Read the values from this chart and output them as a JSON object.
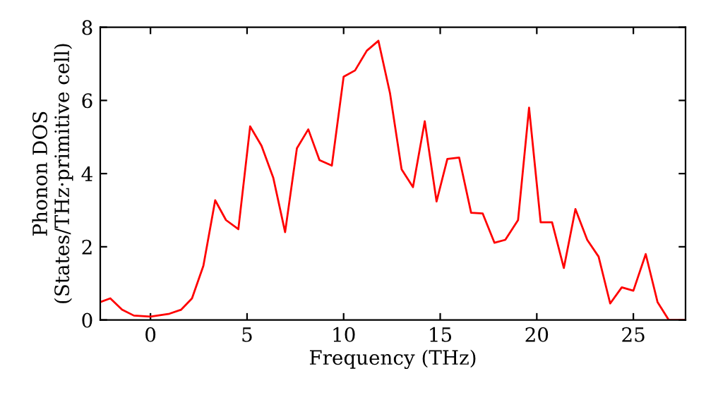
{
  "chart_data": {
    "type": "line",
    "xlabel": "Frequency (THz)",
    "ylabel": "Phonon DOS\n(States/THz·primitive cell)",
    "x": [
      -2.6,
      -2.08,
      -1.47,
      -0.86,
      0,
      0.98,
      1.59,
      2.15,
      2.74,
      3.35,
      3.91,
      4.55,
      5.16,
      5.75,
      6.36,
      6.97,
      7.58,
      8.17,
      8.75,
      9.39,
      10.0,
      10.59,
      11.2,
      11.8,
      12.4,
      13.0,
      13.59,
      14.2,
      14.81,
      15.37,
      15.98,
      16.6,
      17.2,
      17.81,
      18.37,
      19.03,
      19.6,
      20.2,
      20.79,
      21.4,
      22.0,
      22.61,
      23.2,
      23.8,
      24.4,
      25.0,
      25.64,
      26.25,
      26.83,
      27.7
    ],
    "series": [
      {
        "color": "#ff0000",
        "values": [
          0.49,
          0.59,
          0.28,
          0.12,
          0.09,
          0.17,
          0.28,
          0.59,
          1.48,
          3.27,
          2.73,
          2.48,
          5.29,
          4.76,
          3.88,
          2.4,
          4.69,
          5.21,
          4.37,
          4.22,
          6.65,
          6.82,
          7.36,
          7.63,
          6.2,
          4.12,
          3.63,
          5.43,
          3.24,
          4.4,
          4.44,
          2.93,
          2.91,
          2.11,
          2.19,
          2.73,
          5.8,
          2.67,
          2.67,
          1.42,
          3.03,
          2.19,
          1.73,
          0.45,
          0.89,
          0.8,
          1.8,
          0.49,
          0.0,
          0.0
        ]
      }
    ],
    "xlim": [
      -2.6,
      27.7
    ],
    "ylim": [
      0,
      8
    ],
    "xticks": [
      0,
      5,
      10,
      15,
      20,
      25
    ],
    "yticks": [
      0,
      2,
      4,
      6,
      8
    ],
    "grid": false,
    "legend": false,
    "marker": "none",
    "line_style": "solid"
  }
}
